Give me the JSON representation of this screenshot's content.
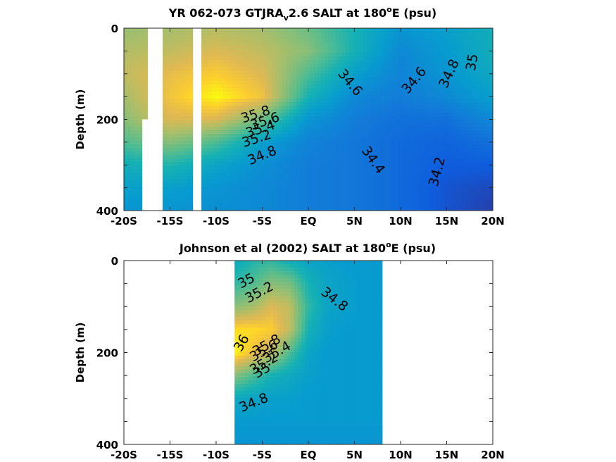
{
  "chart_data": [
    {
      "type": "heatmap",
      "subtype": "filled-contour",
      "title_parts": [
        "YR 062-073 GTJRA",
        "v",
        "2.6 SALT at 180",
        "o",
        "E (psu)"
      ],
      "xlabel": "",
      "ylabel": "Depth (m)",
      "xlim": [
        -20,
        20
      ],
      "ylim": [
        0,
        400
      ],
      "y_reversed": true,
      "x_tick_values": [
        -20,
        -15,
        -10,
        -5,
        0,
        5,
        10,
        15,
        20
      ],
      "x_tick_labels": [
        "-20S",
        "-15S",
        "-10S",
        "-5S",
        "EQ",
        "5N",
        "10N",
        "15N",
        "20N"
      ],
      "y_tick_values": [
        0,
        200,
        400
      ],
      "y_tick_labels": [
        "0",
        "200",
        "400"
      ],
      "colormap": "parula",
      "color_range_psu": [
        34.0,
        36.0
      ],
      "missing_data_bands": [
        {
          "x_from": -17.4,
          "x_to": -15.8,
          "depth_from": 0,
          "depth_to": 400
        },
        {
          "x_from": -18.0,
          "x_to": -17.4,
          "depth_from": 200,
          "depth_to": 400
        },
        {
          "x_from": -12.5,
          "x_to": -11.6,
          "depth_from": 0,
          "depth_to": 400
        }
      ],
      "salinity_field": {
        "lat": [
          -20,
          -15,
          -10,
          -5,
          0,
          5,
          10,
          15,
          20
        ],
        "depth": [
          0,
          50,
          100,
          150,
          200,
          250,
          300,
          350,
          400
        ],
        "values": [
          [
            35.45,
            35.5,
            35.55,
            35.5,
            35.3,
            35.0,
            34.7,
            34.8,
            34.95
          ],
          [
            35.55,
            35.6,
            35.7,
            35.6,
            35.4,
            35.0,
            34.6,
            34.75,
            34.95
          ],
          [
            35.6,
            35.75,
            35.85,
            35.7,
            35.2,
            34.8,
            34.55,
            34.7,
            34.9
          ],
          [
            35.5,
            35.8,
            36.0,
            35.8,
            35.0,
            34.6,
            34.5,
            34.6,
            34.8
          ],
          [
            35.4,
            35.7,
            35.7,
            35.3,
            34.7,
            34.5,
            34.4,
            34.4,
            34.6
          ],
          [
            35.2,
            35.4,
            35.2,
            34.8,
            34.55,
            34.45,
            34.35,
            34.3,
            34.4
          ],
          [
            34.95,
            35.05,
            34.85,
            34.65,
            34.5,
            34.45,
            34.35,
            34.25,
            34.25
          ],
          [
            34.8,
            34.8,
            34.7,
            34.6,
            34.5,
            34.45,
            34.35,
            34.2,
            34.15
          ],
          [
            34.7,
            34.7,
            34.65,
            34.6,
            34.5,
            34.45,
            34.35,
            34.2,
            34.1
          ]
        ]
      },
      "contour_labels": [
        {
          "text": "34.6",
          "lat": 4.5,
          "depth": 120,
          "angle": 50
        },
        {
          "text": "34.6",
          "lat": 11.5,
          "depth": 115,
          "angle": -50
        },
        {
          "text": "34.8",
          "lat": 15.3,
          "depth": 100,
          "angle": -65
        },
        {
          "text": "35",
          "lat": 17.8,
          "depth": 75,
          "angle": -80
        },
        {
          "text": "35.8",
          "lat": -5.7,
          "depth": 190,
          "angle": -18
        },
        {
          "text": "35.6",
          "lat": -4.7,
          "depth": 205,
          "angle": -18
        },
        {
          "text": "35.4",
          "lat": -5.2,
          "depth": 222,
          "angle": -18
        },
        {
          "text": "35.2",
          "lat": -5.6,
          "depth": 243,
          "angle": -18
        },
        {
          "text": "34.8",
          "lat": -5.0,
          "depth": 280,
          "angle": -22
        },
        {
          "text": "34.4",
          "lat": 7.0,
          "depth": 290,
          "angle": 55
        },
        {
          "text": "34.2",
          "lat": 14.0,
          "depth": 315,
          "angle": -75
        }
      ]
    },
    {
      "type": "heatmap",
      "subtype": "filled-contour",
      "title_parts": [
        "Johnson et al (2002) SALT at 180",
        "o",
        "E (psu)"
      ],
      "xlabel": "",
      "ylabel": "Depth (m)",
      "xlim": [
        -20,
        20
      ],
      "ylim": [
        0,
        400
      ],
      "y_reversed": true,
      "x_tick_values": [
        -20,
        -15,
        -10,
        -5,
        0,
        5,
        10,
        15,
        20
      ],
      "x_tick_labels": [
        "-20S",
        "-15S",
        "-10S",
        "-5S",
        "EQ",
        "5N",
        "10N",
        "15N",
        "20N"
      ],
      "y_tick_values": [
        0,
        200,
        400
      ],
      "y_tick_labels": [
        "0",
        "200",
        "400"
      ],
      "colormap": "parula",
      "color_range_psu": [
        34.0,
        36.0
      ],
      "data_extent_lat": [
        -8,
        8
      ],
      "salinity_field": {
        "lat": [
          -8,
          -6,
          -4,
          -2,
          0,
          2,
          4,
          6,
          8
        ],
        "depth": [
          0,
          50,
          100,
          150,
          200,
          250,
          300,
          350,
          400
        ],
        "values": [
          [
            34.9,
            35.05,
            35.1,
            34.95,
            34.85,
            34.8,
            34.75,
            34.75,
            34.75
          ],
          [
            35.1,
            35.2,
            35.4,
            35.35,
            35.0,
            34.85,
            34.8,
            34.75,
            34.75
          ],
          [
            35.4,
            35.5,
            35.7,
            35.6,
            35.1,
            34.85,
            34.8,
            34.75,
            34.75
          ],
          [
            35.9,
            35.9,
            35.85,
            35.6,
            35.0,
            34.8,
            34.75,
            34.75,
            34.75
          ],
          [
            36.0,
            35.8,
            35.6,
            35.2,
            34.85,
            34.75,
            34.75,
            34.75,
            34.75
          ],
          [
            35.4,
            35.2,
            35.0,
            34.9,
            34.8,
            34.75,
            34.75,
            34.75,
            34.75
          ],
          [
            34.9,
            34.85,
            34.8,
            34.8,
            34.75,
            34.75,
            34.75,
            34.75,
            34.75
          ],
          [
            34.75,
            34.75,
            34.75,
            34.75,
            34.75,
            34.75,
            34.75,
            34.75,
            34.75
          ],
          [
            34.7,
            34.7,
            34.7,
            34.7,
            34.7,
            34.7,
            34.7,
            34.7,
            34.7
          ]
        ]
      },
      "contour_labels": [
        {
          "text": "35",
          "lat": -6.7,
          "depth": 45,
          "angle": -28
        },
        {
          "text": "35.2",
          "lat": -5.3,
          "depth": 70,
          "angle": -28
        },
        {
          "text": "34.8",
          "lat": 2.8,
          "depth": 85,
          "angle": 38
        },
        {
          "text": "36",
          "lat": -7.2,
          "depth": 180,
          "angle": -60
        },
        {
          "text": "35.8",
          "lat": -4.5,
          "depth": 185,
          "angle": -30
        },
        {
          "text": "35.6",
          "lat": -4.8,
          "depth": 197,
          "angle": -30
        },
        {
          "text": "35.4",
          "lat": -3.4,
          "depth": 200,
          "angle": -30
        },
        {
          "text": "35.2",
          "lat": -4.8,
          "depth": 225,
          "angle": -30
        },
        {
          "text": "35",
          "lat": -5.0,
          "depth": 240,
          "angle": -30
        },
        {
          "text": "34.8",
          "lat": -5.9,
          "depth": 310,
          "angle": -22
        }
      ]
    }
  ]
}
